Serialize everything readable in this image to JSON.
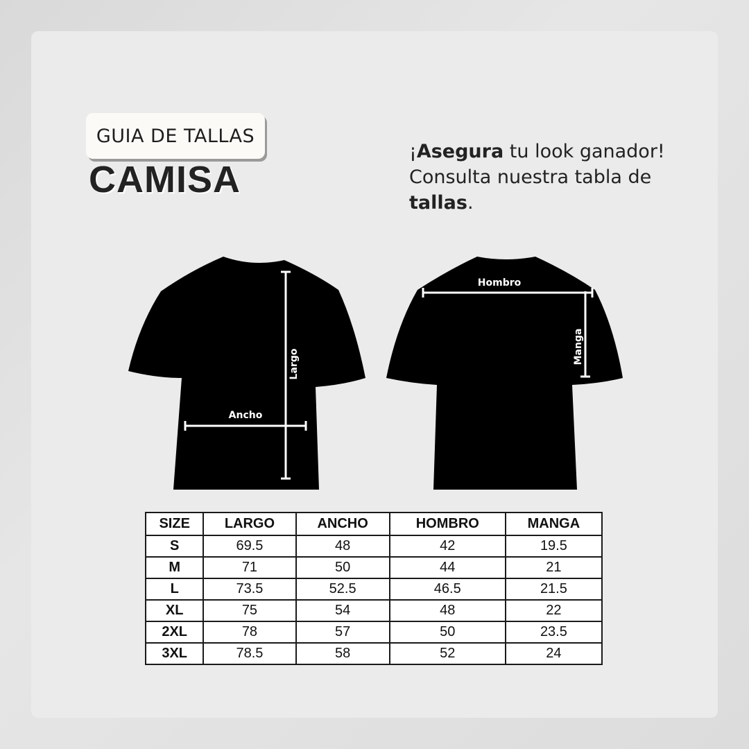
{
  "header": {
    "badge": "GUIA DE TALLAS",
    "title": "CAMISA"
  },
  "tagline": {
    "pre": "¡",
    "bold1": "Asegura",
    "mid": " tu look ganador! Consulta nuestra tabla de ",
    "bold2": "tallas",
    "post": "."
  },
  "diagram": {
    "front": {
      "largo_label": "Largo",
      "ancho_label": "Ancho"
    },
    "back": {
      "hombro_label": "Hombro",
      "manga_label": "Manga"
    },
    "shirt_color": "#000000"
  },
  "table": {
    "headers": [
      "SIZE",
      "LARGO",
      "ANCHO",
      "HOMBRO",
      "MANGA"
    ],
    "rows": [
      [
        "S",
        "69.5",
        "48",
        "42",
        "19.5"
      ],
      [
        "M",
        "71",
        "50",
        "44",
        "21"
      ],
      [
        "L",
        "73.5",
        "52.5",
        "46.5",
        "21.5"
      ],
      [
        "XL",
        "75",
        "54",
        "48",
        "22"
      ],
      [
        "2XL",
        "78",
        "57",
        "50",
        "23.5"
      ],
      [
        "3XL",
        "78.5",
        "58",
        "52",
        "24"
      ]
    ]
  }
}
